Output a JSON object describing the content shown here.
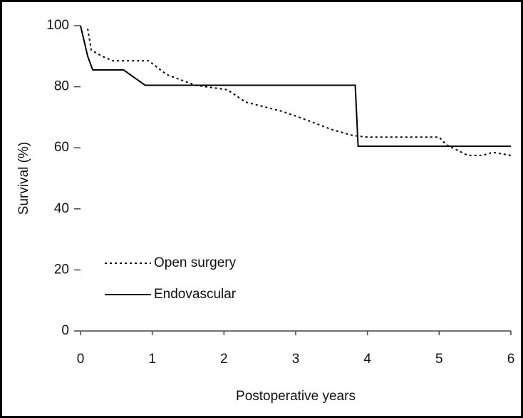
{
  "chart_data": {
    "type": "line",
    "xlabel": "Postoperative years",
    "ylabel": "Survival (%)",
    "xlim": [
      0,
      6
    ],
    "ylim": [
      0,
      100
    ],
    "xticks": [
      0,
      1,
      2,
      3,
      4,
      5,
      6
    ],
    "yticks": [
      0,
      20,
      40,
      60,
      80,
      100
    ],
    "series": [
      {
        "name": "Open surgery",
        "color": "#000000",
        "dash": "dotted",
        "x": [
          0.1,
          0.15,
          0.3,
          0.45,
          0.95,
          1.2,
          1.6,
          2.05,
          2.3,
          2.8,
          3.05,
          3.5,
          3.8,
          4.0,
          5.0,
          5.1,
          5.4,
          5.6,
          5.75,
          6.0
        ],
        "values": [
          99,
          92,
          90,
          88.5,
          88.5,
          84,
          80.5,
          79,
          75,
          72,
          70,
          66,
          64,
          63.5,
          63.5,
          61,
          57.5,
          57.5,
          58.5,
          57.5
        ]
      },
      {
        "name": "Endovascular",
        "color": "#000000",
        "dash": "solid",
        "x": [
          0,
          0.1,
          0.17,
          0.6,
          0.9,
          3.83,
          3.87,
          6.0
        ],
        "values": [
          100,
          90,
          85.5,
          85.5,
          80.5,
          80.5,
          60.5,
          60.5
        ]
      }
    ]
  }
}
